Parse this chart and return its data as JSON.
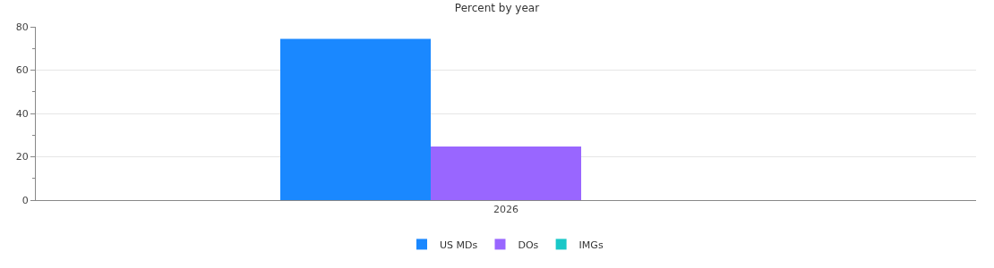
{
  "chart_data": {
    "type": "bar",
    "title": "Percent by year",
    "categories": [
      "2026"
    ],
    "series": [
      {
        "name": "US MDs",
        "color": "#1a88ff",
        "values": [
          74.4
        ]
      },
      {
        "name": "DOs",
        "color": "#9966ff",
        "values": [
          24.7
        ]
      },
      {
        "name": "IMGs",
        "color": "#19c8c8",
        "values": [
          null
        ]
      }
    ],
    "ylim": [
      0,
      80
    ],
    "yticks": [
      0,
      20,
      40,
      60,
      80
    ],
    "grid": "y",
    "legend": "bottom"
  }
}
